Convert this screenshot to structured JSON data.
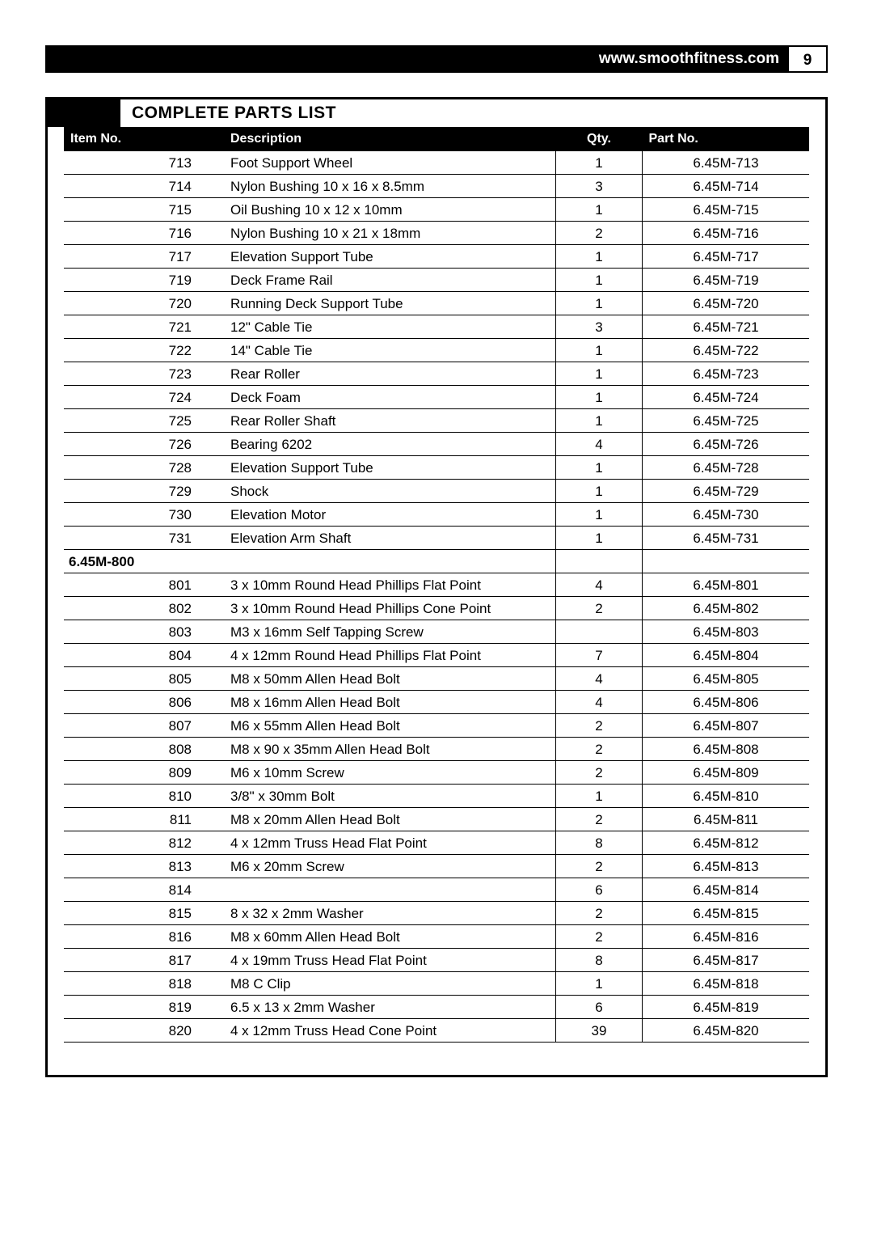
{
  "header": {
    "url": "www.smoothfitness.com",
    "page_number": "9"
  },
  "section_title": "COMPLETE PARTS LIST",
  "columns": {
    "item": "Item No.",
    "desc": "Description",
    "qty": "Qty.",
    "part": "Part No."
  },
  "group_label": "6.45M-800",
  "rows": [
    {
      "item": "713",
      "desc": "Foot Support Wheel",
      "qty": "1",
      "part": "6.45M-713"
    },
    {
      "item": "714",
      "desc": "Nylon Bushing 10 x 16 x 8.5mm",
      "qty": "3",
      "part": "6.45M-714"
    },
    {
      "item": "715",
      "desc": "Oil Bushing 10 x 12 x 10mm",
      "qty": "1",
      "part": "6.45M-715"
    },
    {
      "item": "716",
      "desc": "Nylon Bushing 10 x 21 x 18mm",
      "qty": "2",
      "part": "6.45M-716"
    },
    {
      "item": "717",
      "desc": "Elevation Support Tube",
      "qty": "1",
      "part": "6.45M-717"
    },
    {
      "item": "719",
      "desc": "Deck Frame Rail",
      "qty": "1",
      "part": "6.45M-719"
    },
    {
      "item": "720",
      "desc": "Running Deck Support Tube",
      "qty": "1",
      "part": "6.45M-720"
    },
    {
      "item": "721",
      "desc": "12\" Cable Tie",
      "qty": "3",
      "part": "6.45M-721"
    },
    {
      "item": "722",
      "desc": "14\" Cable Tie",
      "qty": "1",
      "part": "6.45M-722"
    },
    {
      "item": "723",
      "desc": "Rear Roller",
      "qty": "1",
      "part": "6.45M-723"
    },
    {
      "item": "724",
      "desc": "Deck Foam",
      "qty": "1",
      "part": "6.45M-724"
    },
    {
      "item": "725",
      "desc": "Rear Roller Shaft",
      "qty": "1",
      "part": "6.45M-725"
    },
    {
      "item": "726",
      "desc": "Bearing 6202",
      "qty": "4",
      "part": "6.45M-726"
    },
    {
      "item": "728",
      "desc": "Elevation Support Tube",
      "qty": "1",
      "part": "6.45M-728"
    },
    {
      "item": "729",
      "desc": "Shock",
      "qty": "1",
      "part": "6.45M-729"
    },
    {
      "item": "730",
      "desc": "Elevation Motor",
      "qty": "1",
      "part": "6.45M-730"
    },
    {
      "item": "731",
      "desc": "Elevation Arm Shaft",
      "qty": "1",
      "part": "6.45M-731"
    },
    {
      "group": true
    },
    {
      "item": "801",
      "desc": "3 x 10mm Round Head Phillips Flat Point",
      "qty": "4",
      "part": "6.45M-801"
    },
    {
      "item": "802",
      "desc": "3 x 10mm Round Head Phillips Cone Point",
      "qty": "2",
      "part": "6.45M-802"
    },
    {
      "item": "803",
      "desc": "M3 x 16mm Self Tapping Screw",
      "qty": "",
      "part": "6.45M-803"
    },
    {
      "item": "804",
      "desc": "4 x 12mm Round Head Phillips Flat Point",
      "qty": "7",
      "part": "6.45M-804"
    },
    {
      "item": "805",
      "desc": "M8 x 50mm Allen Head Bolt",
      "qty": "4",
      "part": "6.45M-805"
    },
    {
      "item": "806",
      "desc": "M8 x 16mm Allen Head Bolt",
      "qty": "4",
      "part": "6.45M-806"
    },
    {
      "item": "807",
      "desc": "M6 x 55mm Allen Head Bolt",
      "qty": "2",
      "part": "6.45M-807"
    },
    {
      "item": "808",
      "desc": "M8 x 90 x 35mm Allen Head Bolt",
      "qty": "2",
      "part": "6.45M-808"
    },
    {
      "item": "809",
      "desc": "M6 x 10mm Screw",
      "qty": "2",
      "part": "6.45M-809"
    },
    {
      "item": "810",
      "desc": "3/8\" x 30mm Bolt",
      "qty": "1",
      "part": "6.45M-810"
    },
    {
      "item": "811",
      "desc": "M8 x 20mm Allen Head Bolt",
      "qty": "2",
      "part": "6.45M-811"
    },
    {
      "item": "812",
      "desc": "4 x 12mm Truss Head Flat Point",
      "qty": "8",
      "part": "6.45M-812"
    },
    {
      "item": "813",
      "desc": "M6 x 20mm Screw",
      "qty": "2",
      "part": "6.45M-813"
    },
    {
      "item": "814",
      "desc": "",
      "qty": "6",
      "part": "6.45M-814"
    },
    {
      "item": "815",
      "desc": "8 x 32 x 2mm Washer",
      "qty": "2",
      "part": "6.45M-815"
    },
    {
      "item": "816",
      "desc": "M8 x 60mm Allen Head Bolt",
      "qty": "2",
      "part": "6.45M-816"
    },
    {
      "item": "817",
      "desc": "4 x 19mm Truss Head Flat Point",
      "qty": "8",
      "part": "6.45M-817"
    },
    {
      "item": "818",
      "desc": "M8 C Clip",
      "qty": "1",
      "part": "6.45M-818"
    },
    {
      "item": "819",
      "desc": "6.5 x 13 x 2mm Washer",
      "qty": "6",
      "part": "6.45M-819"
    },
    {
      "item": "820",
      "desc": "4 x 12mm Truss Head Cone Point",
      "qty": "39",
      "part": "6.45M-820"
    }
  ]
}
